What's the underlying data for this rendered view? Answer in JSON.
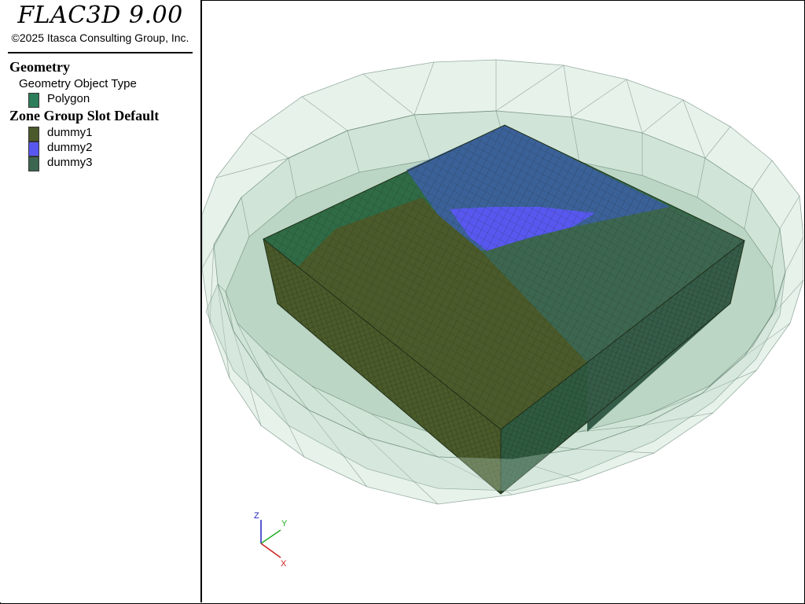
{
  "header": {
    "app_title": "FLAC3D 9.00",
    "copyright": "©2025 Itasca Consulting Group, Inc."
  },
  "legend": {
    "geometry": {
      "heading": "Geometry",
      "subheading": "Geometry Object Type",
      "items": [
        {
          "label": "Polygon",
          "color": "#2e7d5a"
        }
      ]
    },
    "zone_group": {
      "heading": "Zone Group Slot Default",
      "items": [
        {
          "label": "dummy1",
          "color": "#4a5a2a"
        },
        {
          "label": "dummy2",
          "color": "#5858f0"
        },
        {
          "label": "dummy3",
          "color": "#3d6650"
        }
      ]
    }
  },
  "axes": {
    "z": "Z",
    "y": "Y",
    "x": "X",
    "z_color": "#2020c0",
    "y_color": "#20b020",
    "x_color": "#d02020"
  }
}
